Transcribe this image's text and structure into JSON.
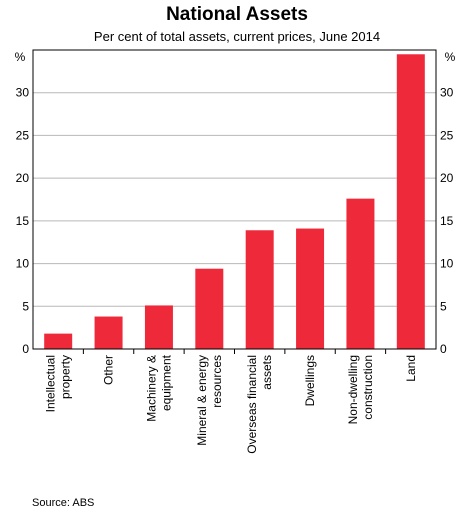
{
  "chart_data": {
    "type": "bar",
    "title": "National Assets",
    "subtitle": "Per cent of total assets, current prices, June 2014",
    "ylabel_left": "%",
    "ylabel_right": "%",
    "ylim": [
      0,
      35
    ],
    "yticks": [
      0,
      5,
      10,
      15,
      20,
      25,
      30
    ],
    "grid": true,
    "bar_color": "#ee2a3a",
    "categories": [
      [
        "Intellectual",
        "property"
      ],
      [
        "Other"
      ],
      [
        "Machinery &",
        "equipment"
      ],
      [
        "Mineral & energy",
        "resources"
      ],
      [
        "Overseas financial",
        "assets"
      ],
      [
        "Dwellings"
      ],
      [
        "Non-dwelling",
        "construction"
      ],
      [
        "Land"
      ]
    ],
    "values": [
      1.8,
      3.8,
      5.1,
      9.4,
      13.9,
      14.1,
      17.6,
      34.5
    ]
  },
  "source": "Source:   ABS"
}
